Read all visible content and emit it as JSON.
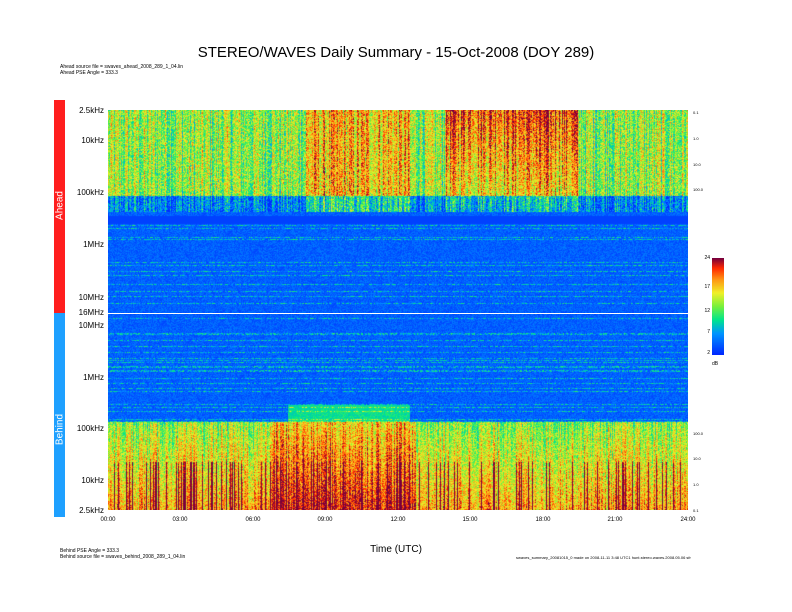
{
  "title": "STEREO/WAVES Daily Summary - 15-Oct-2008 (DOY 289)",
  "header_notes": [
    "Ahead source file = swaves_ahead_2008_289_1_04.lin",
    "Ahead PSE Angle = 333.3"
  ],
  "footer_notes": [
    "Behind PSE Angle = 333.3",
    "Behind source file = swaves_behind_2008_289_1_04.lin"
  ],
  "footer_right": "swaves_summary_20081015_0 made on 2008-11-11 3:48 UTC1 hunt.stereo.waves.2008.05.06 sfr",
  "colors": {
    "ahead": "#ff1e1e",
    "behind": "#1ea0ff"
  },
  "chart_data": {
    "type": "heatmap",
    "title": "STEREO/WAVES Daily Summary - 15-Oct-2008 (DOY 289)",
    "xlabel": "Time (UTC)",
    "x_ticks": [
      "00:00",
      "03:00",
      "06:00",
      "09:00",
      "12:00",
      "15:00",
      "18:00",
      "21:00",
      "24:00"
    ],
    "panels": [
      {
        "name": "Ahead",
        "y_scale": "log",
        "y_ticks": [
          "2.5kHz",
          "10kHz",
          "100kHz",
          "1MHz",
          "10MHz",
          "16MHz"
        ],
        "right_ticks": [
          "0.1",
          "1.0",
          "10.0",
          "100.0"
        ]
      },
      {
        "name": "Behind",
        "y_scale": "log",
        "y_ticks": [
          "10MHz",
          "1MHz",
          "100kHz",
          "10kHz",
          "2.5kHz"
        ],
        "right_ticks": [
          "100.0",
          "10.0",
          "1.0",
          "0.1"
        ]
      }
    ],
    "colorbar": {
      "ticks": [
        "24",
        "17",
        "12",
        "7",
        "2"
      ],
      "unit": "dB",
      "range": [
        2,
        24
      ]
    }
  }
}
